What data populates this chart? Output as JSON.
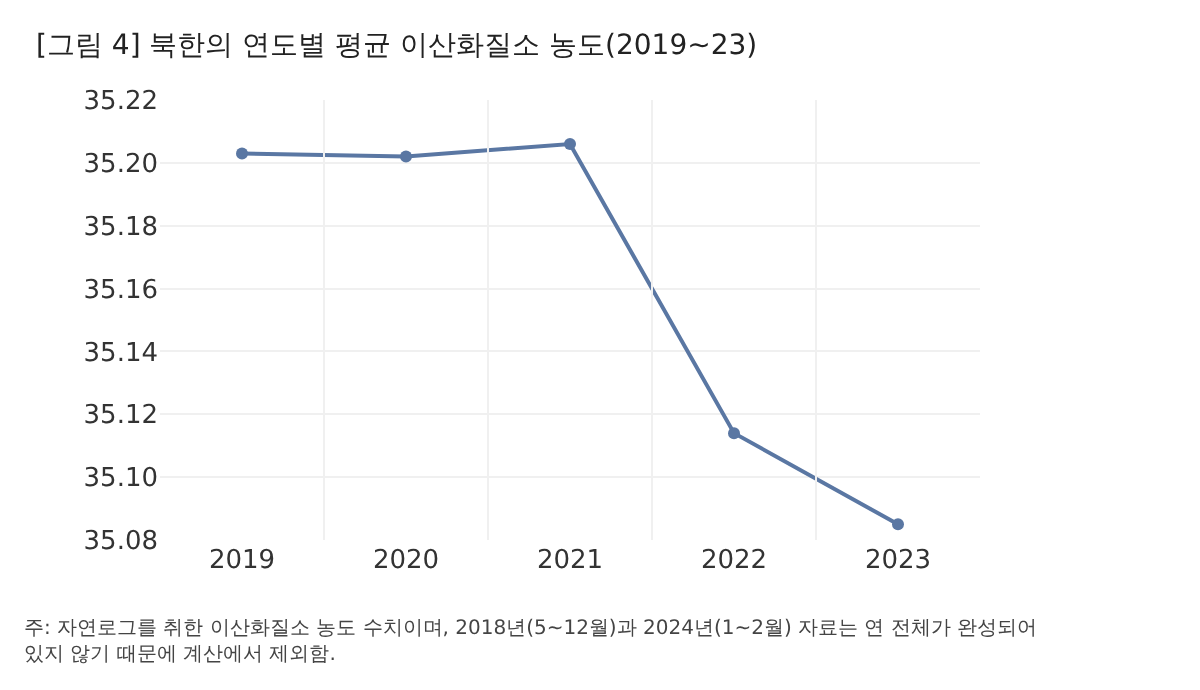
{
  "chart_data": {
    "type": "line",
    "title": "[그림 4] 북한의 연도별 평균 이산화질소 농도(2019~23)",
    "categories": [
      "2019",
      "2020",
      "2021",
      "2022",
      "2023"
    ],
    "series": [
      {
        "color": "#5a77a3",
        "values": [
          35.203,
          35.202,
          35.206,
          35.114,
          35.085
        ]
      }
    ],
    "ylim": [
      35.08,
      35.22
    ],
    "yticks": [
      {
        "value": 35.08,
        "label": "35.08"
      },
      {
        "value": 35.1,
        "label": "35.10"
      },
      {
        "value": 35.12,
        "label": "35.12"
      },
      {
        "value": 35.14,
        "label": "35.14"
      },
      {
        "value": 35.16,
        "label": "35.16"
      },
      {
        "value": 35.18,
        "label": "35.18"
      },
      {
        "value": 35.2,
        "label": "35.20"
      },
      {
        "value": 35.22,
        "label": "35.22"
      }
    ],
    "grid": true,
    "marker": "circle",
    "line_style": "solid",
    "legend": false,
    "annotations": [
      "주: 자연로그를 취한 이산화질소 농도 수치이며, 2018년(5~12월)과 2024년(1~2월) 자료는 연 전체가 완성되어 있지 않기 때문에 계산에서 제외함."
    ]
  }
}
